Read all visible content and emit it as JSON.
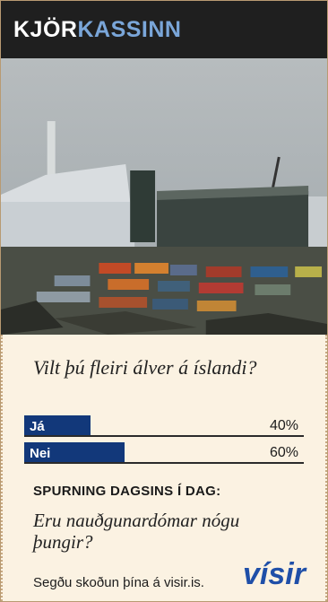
{
  "header": {
    "brand_prefix": "KJÖR",
    "brand_suffix": "KASSINN"
  },
  "poll": {
    "question": "Vilt þú fleiri álver á íslandi?",
    "options": [
      {
        "label": "Já",
        "percent_text": "40%",
        "value": 40
      },
      {
        "label": "Nei",
        "percent_text": "60%",
        "value": 60
      }
    ]
  },
  "next": {
    "title": "SPURNING DAGSINS Í DAG:",
    "question": "Eru nauðgunardómar nógu þungir?"
  },
  "footer": {
    "text": "Segðu skoðun þína á visir.is.",
    "logo_text": "vísir"
  },
  "colors": {
    "header_bg": "#1f1f1f",
    "brand_blue": "#7aa6d9",
    "bar_blue": "#12387a",
    "card_bg": "#fbf2e2"
  }
}
